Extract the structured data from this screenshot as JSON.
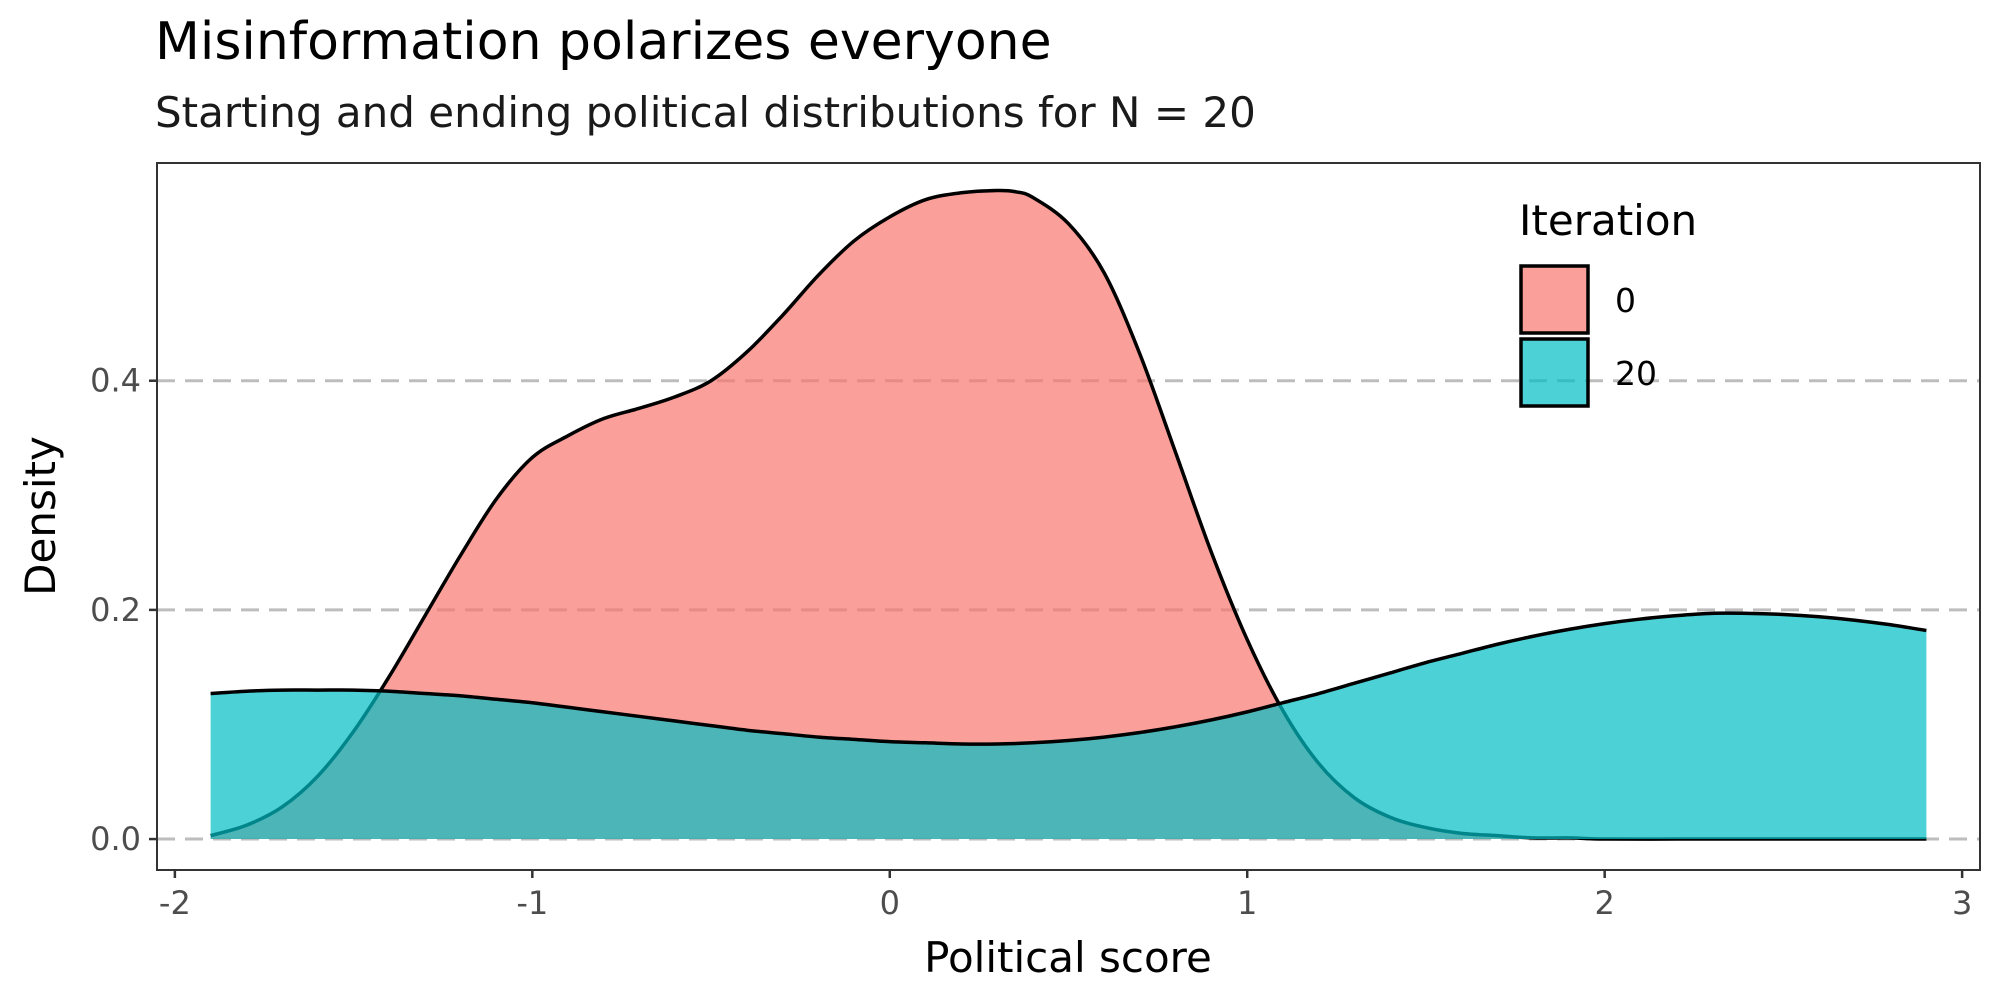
{
  "chart_data": {
    "type": "area",
    "title": "Misinformation polarizes everyone",
    "subtitle": "Starting and ending political distributions for N = 20",
    "xlabel": "Political score",
    "ylabel": "Density",
    "xlim": [
      -2.05,
      3.05
    ],
    "ylim": [
      -0.027,
      0.59
    ],
    "x_ticks": [
      -2,
      -1,
      0,
      1,
      2,
      3
    ],
    "x_tick_labels": [
      "-2",
      "-1",
      "0",
      "1",
      "2",
      "3"
    ],
    "y_ticks": [
      0.0,
      0.2,
      0.4
    ],
    "y_tick_labels": [
      "0.0",
      "0.2",
      "0.4"
    ],
    "grid": "horizontal major lines, dashed",
    "legend": {
      "title": "Iteration",
      "position": "top-right",
      "entries": [
        "0",
        "20"
      ]
    },
    "series": [
      {
        "name": "0",
        "color": "#F8766D",
        "x": [
          -1.9,
          -1.8,
          -1.7,
          -1.6,
          -1.5,
          -1.4,
          -1.3,
          -1.2,
          -1.1,
          -1.0,
          -0.9,
          -0.8,
          -0.7,
          -0.6,
          -0.5,
          -0.4,
          -0.3,
          -0.2,
          -0.1,
          0.0,
          0.1,
          0.2,
          0.3,
          0.35,
          0.4,
          0.5,
          0.6,
          0.7,
          0.8,
          0.9,
          1.0,
          1.1,
          1.2,
          1.3,
          1.4,
          1.5,
          1.6,
          1.7,
          1.8,
          1.9,
          2.0,
          2.2,
          2.4,
          2.6,
          2.9
        ],
        "values": [
          0.003,
          0.012,
          0.028,
          0.055,
          0.094,
          0.142,
          0.195,
          0.248,
          0.297,
          0.333,
          0.352,
          0.367,
          0.376,
          0.386,
          0.4,
          0.425,
          0.457,
          0.492,
          0.522,
          0.543,
          0.558,
          0.564,
          0.566,
          0.565,
          0.56,
          0.537,
          0.494,
          0.423,
          0.337,
          0.25,
          0.174,
          0.112,
          0.066,
          0.036,
          0.019,
          0.01,
          0.005,
          0.003,
          0.001,
          0.001,
          0.0,
          0.0,
          0.0,
          0.0,
          0.0
        ]
      },
      {
        "name": "20",
        "color": "#00BFC4",
        "x": [
          -1.9,
          -1.8,
          -1.7,
          -1.6,
          -1.5,
          -1.4,
          -1.3,
          -1.2,
          -1.1,
          -1.0,
          -0.9,
          -0.8,
          -0.7,
          -0.6,
          -0.5,
          -0.4,
          -0.3,
          -0.2,
          -0.1,
          0.0,
          0.1,
          0.2,
          0.3,
          0.4,
          0.5,
          0.6,
          0.7,
          0.8,
          0.9,
          1.0,
          1.1,
          1.2,
          1.3,
          1.4,
          1.5,
          1.6,
          1.7,
          1.8,
          1.9,
          2.0,
          2.1,
          2.2,
          2.3,
          2.4,
          2.5,
          2.6,
          2.7,
          2.8,
          2.9
        ],
        "values": [
          0.127,
          0.129,
          0.13,
          0.13,
          0.13,
          0.129,
          0.127,
          0.125,
          0.122,
          0.119,
          0.115,
          0.111,
          0.107,
          0.103,
          0.099,
          0.095,
          0.092,
          0.089,
          0.087,
          0.085,
          0.084,
          0.083,
          0.083,
          0.084,
          0.086,
          0.089,
          0.093,
          0.098,
          0.104,
          0.111,
          0.119,
          0.127,
          0.136,
          0.145,
          0.154,
          0.162,
          0.17,
          0.177,
          0.183,
          0.188,
          0.192,
          0.195,
          0.197,
          0.197,
          0.196,
          0.194,
          0.191,
          0.187,
          0.182
        ]
      }
    ]
  }
}
